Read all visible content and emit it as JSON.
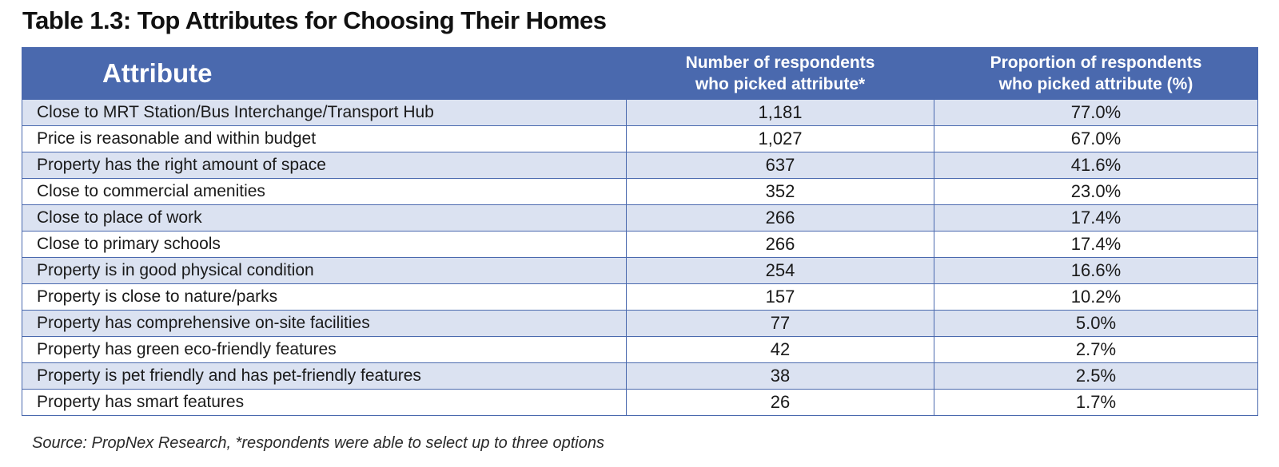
{
  "title": "Table 1.3: Top Attributes for Choosing Their Homes",
  "headers": {
    "attribute": "Attribute",
    "count_line1": "Number of respondents",
    "count_line2": "who picked attribute*",
    "proportion_line1": "Proportion of respondents",
    "proportion_line2": "who picked attribute (%)"
  },
  "rows": [
    {
      "attribute": "Close to MRT Station/Bus Interchange/Transport Hub",
      "count": "1,181",
      "proportion": "77.0%"
    },
    {
      "attribute": "Price is reasonable and within budget",
      "count": "1,027",
      "proportion": "67.0%"
    },
    {
      "attribute": "Property has the right amount of space",
      "count": "637",
      "proportion": "41.6%"
    },
    {
      "attribute": "Close to commercial amenities",
      "count": "352",
      "proportion": "23.0%"
    },
    {
      "attribute": "Close to place of work",
      "count": "266",
      "proportion": "17.4%"
    },
    {
      "attribute": "Close to primary schools",
      "count": "266",
      "proportion": "17.4%"
    },
    {
      "attribute": "Property is in good physical condition",
      "count": "254",
      "proportion": "16.6%"
    },
    {
      "attribute": "Property is close to nature/parks",
      "count": "157",
      "proportion": "10.2%"
    },
    {
      "attribute": "Property has comprehensive on-site facilities",
      "count": "77",
      "proportion": "5.0%"
    },
    {
      "attribute": "Property has green eco-friendly features",
      "count": "42",
      "proportion": "2.7%"
    },
    {
      "attribute": "Property is pet friendly and has pet-friendly features",
      "count": "38",
      "proportion": "2.5%"
    },
    {
      "attribute": "Property has smart features",
      "count": "26",
      "proportion": "1.7%"
    }
  ],
  "source": "Source: PropNex Research, *respondents were able to select up to three options",
  "colors": {
    "header_bg": "#4a69ae",
    "stripe_bg": "#dbe2f1",
    "border": "#4a69ae"
  }
}
